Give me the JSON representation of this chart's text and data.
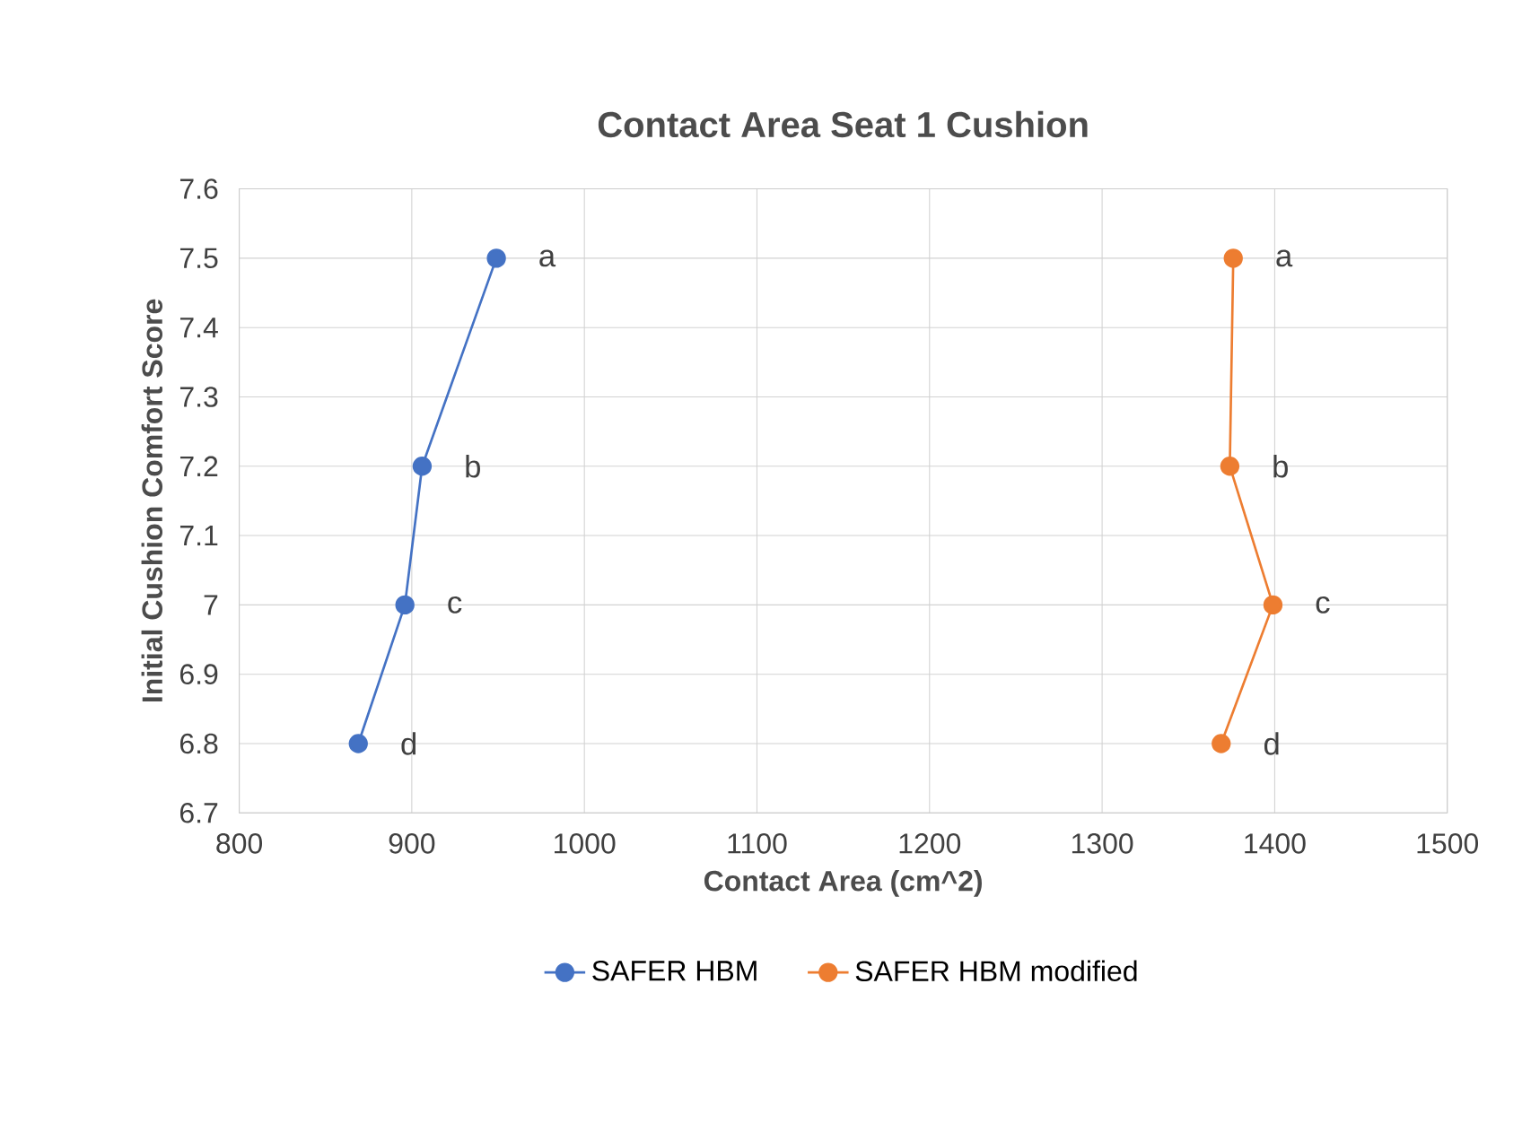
{
  "chart_data": {
    "type": "line",
    "title": "Contact Area Seat 1 Cushion",
    "xlabel": "Contact Area (cm^2)",
    "ylabel": "Initial Cushion Comfort Score",
    "series": [
      {
        "name": "SAFER HBM",
        "color": "#4472c4",
        "x": [
          949,
          906,
          896,
          869
        ],
        "values": [
          7.5,
          7.2,
          7.0,
          6.8
        ]
      },
      {
        "name": "SAFER HBM modified",
        "color": "#ed7d31",
        "x": [
          1376,
          1374,
          1399,
          1369
        ],
        "values": [
          7.5,
          7.2,
          7.0,
          6.8
        ]
      }
    ],
    "xlim": [
      800,
      1500
    ],
    "xticks": [
      800,
      900,
      1000,
      1100,
      1200,
      1300,
      1400,
      1500
    ],
    "ylim": [
      6.7,
      7.6
    ],
    "yticks": [
      6.7,
      6.8,
      6.9,
      7,
      7.1,
      7.2,
      7.3,
      7.4,
      7.5,
      7.6
    ],
    "annotations": [
      {
        "text": "a",
        "x": 949,
        "y": 7.5
      },
      {
        "text": "b",
        "x": 906,
        "y": 7.2
      },
      {
        "text": "c",
        "x": 896,
        "y": 7.0
      },
      {
        "text": "d",
        "x": 869,
        "y": 6.8
      },
      {
        "text": "a",
        "x": 1376,
        "y": 7.5
      },
      {
        "text": "b",
        "x": 1374,
        "y": 7.2
      },
      {
        "text": "c",
        "x": 1399,
        "y": 7.0
      },
      {
        "text": "d",
        "x": 1369,
        "y": 6.8
      }
    ],
    "grid": true,
    "legend": "bottom",
    "marker": "circle",
    "line_style": "solid"
  }
}
